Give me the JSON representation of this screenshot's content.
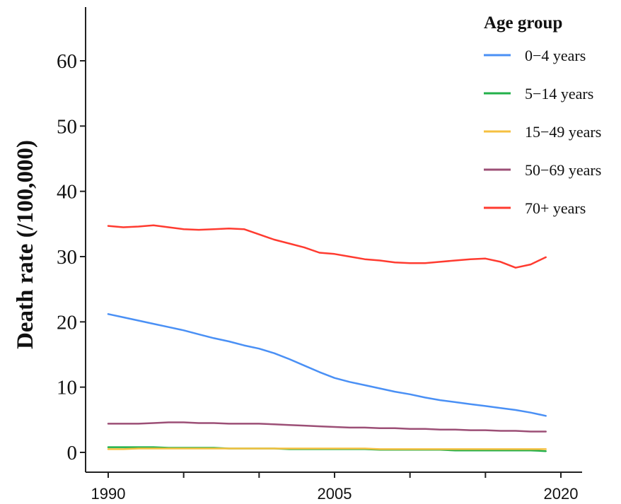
{
  "chart_data": {
    "type": "line",
    "title": "",
    "xlabel": "",
    "ylabel": "Death rate  (/100,000)",
    "xlim": [
      1990,
      2020
    ],
    "ylim": [
      -2,
      68
    ],
    "yticks": [
      0,
      10,
      20,
      30,
      40,
      50,
      60
    ],
    "ytick_labels": [
      "0",
      "10",
      "20",
      "30",
      "40",
      "50",
      "60"
    ],
    "xticks": [
      1990,
      1995,
      2000,
      2005,
      2010,
      2015,
      2020
    ],
    "xtick_labels": [
      "1990",
      "",
      "",
      "2005",
      "",
      "",
      "2020"
    ],
    "grid": false,
    "legend": {
      "title": "Age group",
      "placement": "top-right"
    },
    "x": [
      1990,
      1991,
      1992,
      1993,
      1994,
      1995,
      1996,
      1997,
      1998,
      1999,
      2000,
      2001,
      2002,
      2003,
      2004,
      2005,
      2006,
      2007,
      2008,
      2009,
      2010,
      2011,
      2012,
      2013,
      2014,
      2015,
      2016,
      2017,
      2018,
      2019
    ],
    "series": [
      {
        "name": "0−4 years",
        "color": "#4a90f5",
        "values": [
          21.2,
          20.7,
          20.2,
          19.7,
          19.2,
          18.7,
          18.1,
          17.5,
          17.0,
          16.4,
          15.9,
          15.2,
          14.3,
          13.3,
          12.3,
          11.4,
          10.8,
          10.3,
          9.8,
          9.3,
          8.9,
          8.4,
          8.0,
          7.7,
          7.4,
          7.1,
          6.8,
          6.5,
          6.1,
          5.6
        ]
      },
      {
        "name": "5−14 years",
        "color": "#22b04a",
        "values": [
          0.8,
          0.8,
          0.8,
          0.8,
          0.7,
          0.7,
          0.7,
          0.7,
          0.6,
          0.6,
          0.6,
          0.6,
          0.5,
          0.5,
          0.5,
          0.5,
          0.5,
          0.5,
          0.4,
          0.4,
          0.4,
          0.4,
          0.4,
          0.3,
          0.3,
          0.3,
          0.3,
          0.3,
          0.3,
          0.2
        ]
      },
      {
        "name": "15−49 years",
        "color": "#f5c040",
        "values": [
          0.5,
          0.5,
          0.6,
          0.6,
          0.6,
          0.6,
          0.6,
          0.6,
          0.6,
          0.6,
          0.6,
          0.6,
          0.6,
          0.6,
          0.6,
          0.6,
          0.6,
          0.6,
          0.5,
          0.5,
          0.5,
          0.5,
          0.5,
          0.5,
          0.5,
          0.5,
          0.5,
          0.5,
          0.5,
          0.5
        ]
      },
      {
        "name": "50−69 years",
        "color": "#9c4f76",
        "values": [
          4.4,
          4.4,
          4.4,
          4.5,
          4.6,
          4.6,
          4.5,
          4.5,
          4.4,
          4.4,
          4.4,
          4.3,
          4.2,
          4.1,
          4.0,
          3.9,
          3.8,
          3.8,
          3.7,
          3.7,
          3.6,
          3.6,
          3.5,
          3.5,
          3.4,
          3.4,
          3.3,
          3.3,
          3.2,
          3.2
        ]
      },
      {
        "name": "70+ years",
        "color": "#ff3b30",
        "values": [
          34.7,
          34.5,
          34.6,
          34.8,
          34.5,
          34.2,
          34.1,
          34.2,
          34.3,
          34.2,
          33.4,
          32.6,
          32.0,
          31.4,
          30.6,
          30.4,
          30.0,
          29.6,
          29.4,
          29.1,
          29.0,
          29.0,
          29.2,
          29.4,
          29.6,
          29.7,
          29.2,
          28.3,
          28.8,
          29.9
        ]
      }
    ]
  }
}
